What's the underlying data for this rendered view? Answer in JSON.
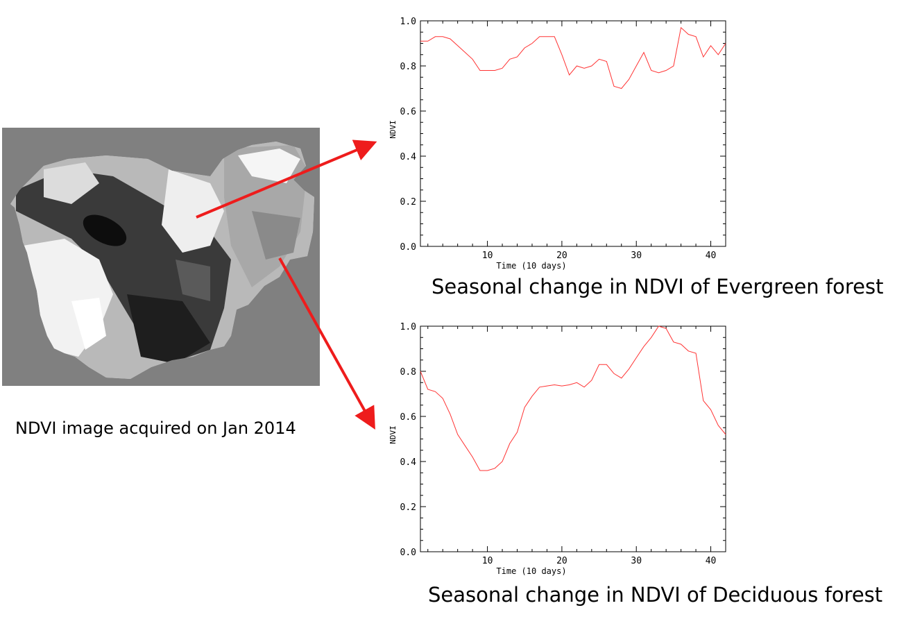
{
  "map": {
    "caption": "NDVI image acquired on Jan 2014",
    "background_color": "#808080"
  },
  "arrow_color": "#ee1c1c",
  "chart_data": [
    {
      "type": "line",
      "caption": "Seasonal change in NDVI of Evergreen forest",
      "xlabel": "Time (10 days)",
      "ylabel": "NDVI",
      "xlim": [
        1,
        42
      ],
      "ylim": [
        0.0,
        1.0
      ],
      "xticks": [
        "10",
        "20",
        "30",
        "40"
      ],
      "yticks": [
        "0.0",
        "0.2",
        "0.4",
        "0.6",
        "0.8",
        "1.0"
      ],
      "line_color": "#ff3333",
      "grid": false,
      "x": [
        1,
        2,
        3,
        4,
        5,
        6,
        7,
        8,
        9,
        10,
        11,
        12,
        13,
        14,
        15,
        16,
        17,
        18,
        19,
        20,
        21,
        22,
        23,
        24,
        25,
        26,
        27,
        28,
        29,
        30,
        31,
        32,
        33,
        34,
        35,
        36,
        37,
        38,
        39,
        40,
        41,
        42
      ],
      "y": [
        0.91,
        0.91,
        0.93,
        0.93,
        0.92,
        0.89,
        0.86,
        0.83,
        0.78,
        0.78,
        0.78,
        0.79,
        0.83,
        0.84,
        0.88,
        0.9,
        0.93,
        0.93,
        0.93,
        0.85,
        0.76,
        0.8,
        0.79,
        0.8,
        0.83,
        0.82,
        0.71,
        0.7,
        0.74,
        0.8,
        0.86,
        0.78,
        0.77,
        0.78,
        0.8,
        0.97,
        0.94,
        0.93,
        0.84,
        0.89,
        0.85,
        0.9
      ]
    },
    {
      "type": "line",
      "caption": "Seasonal change in NDVI of Deciduous forest",
      "xlabel": "Time (10 days)",
      "ylabel": "NDVI",
      "xlim": [
        1,
        42
      ],
      "ylim": [
        0.0,
        1.0
      ],
      "xticks": [
        "10",
        "20",
        "30",
        "40"
      ],
      "yticks": [
        "0.0",
        "0.2",
        "0.4",
        "0.6",
        "0.8",
        "1.0"
      ],
      "line_color": "#ff3333",
      "grid": false,
      "x": [
        1,
        2,
        3,
        4,
        5,
        6,
        7,
        8,
        9,
        10,
        11,
        12,
        13,
        14,
        15,
        16,
        17,
        18,
        19,
        20,
        21,
        22,
        23,
        24,
        25,
        26,
        27,
        28,
        29,
        30,
        31,
        32,
        33,
        34,
        35,
        36,
        37,
        38,
        39,
        40,
        41,
        42
      ],
      "y": [
        0.8,
        0.72,
        0.71,
        0.68,
        0.61,
        0.52,
        0.47,
        0.42,
        0.36,
        0.36,
        0.37,
        0.4,
        0.48,
        0.53,
        0.64,
        0.69,
        0.73,
        0.735,
        0.74,
        0.735,
        0.74,
        0.75,
        0.73,
        0.76,
        0.83,
        0.83,
        0.79,
        0.77,
        0.81,
        0.86,
        0.91,
        0.95,
        1.0,
        0.99,
        0.93,
        0.92,
        0.89,
        0.88,
        0.67,
        0.63,
        0.56,
        0.52
      ]
    }
  ]
}
